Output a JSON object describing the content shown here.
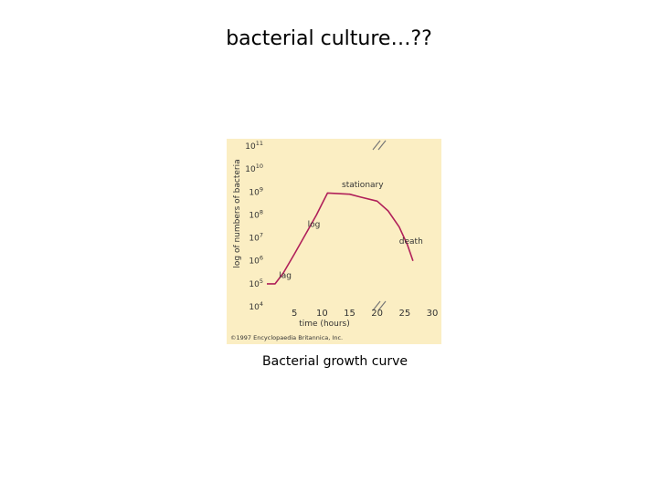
{
  "slide": {
    "title": "bacterial culture…??",
    "caption": "Bacterial growth curve"
  },
  "chart_data": {
    "type": "line",
    "title": "",
    "xlabel": "time (hours)",
    "ylabel": "log of numbers of bacteria",
    "y_scale": "log",
    "xlim": [
      0,
      30
    ],
    "ylim": [
      10000,
      100000000000
    ],
    "x_ticks": [
      {
        "value": 5,
        "label": "5"
      },
      {
        "value": 10,
        "label": "10"
      },
      {
        "value": 15,
        "label": "15"
      },
      {
        "value": 20,
        "label": "20"
      },
      {
        "value": 25,
        "label": "25"
      },
      {
        "value": 30,
        "label": "30"
      }
    ],
    "y_ticks": [
      {
        "value": 10000,
        "base": "10",
        "exp": "4"
      },
      {
        "value": 100000,
        "base": "10",
        "exp": "5"
      },
      {
        "value": 1000000,
        "base": "10",
        "exp": "6"
      },
      {
        "value": 10000000,
        "base": "10",
        "exp": "7"
      },
      {
        "value": 100000000,
        "base": "10",
        "exp": "8"
      },
      {
        "value": 1000000000,
        "base": "10",
        "exp": "9"
      },
      {
        "value": 10000000000,
        "base": "10",
        "exp": "10"
      },
      {
        "value": 100000000000,
        "base": "10",
        "exp": "11"
      }
    ],
    "series": [
      {
        "color": "#b0205a",
        "x": [
          0,
          1.5,
          3,
          5,
          7,
          9,
          10,
          11,
          15,
          17,
          20,
          22,
          24,
          25.5,
          26.5
        ],
        "y": [
          100000,
          100000,
          300000,
          2000000,
          14000000,
          100000000,
          300000000,
          900000000,
          800000000,
          600000000,
          400000000,
          150000000,
          30000000,
          5000000,
          1000000
        ]
      }
    ],
    "annotations": [
      {
        "text": "lag",
        "x": 2.2,
        "y": 180000
      },
      {
        "text": "log",
        "x": 7.4,
        "y": 30000000
      },
      {
        "text": "stationary",
        "x": 13.6,
        "y": 1600000000
      },
      {
        "text": "death",
        "x": 24.0,
        "y": 5500000
      }
    ],
    "copyright": "©1997 Encyclopaedia Britannica, Inc.",
    "grid": false,
    "legend": "none"
  }
}
